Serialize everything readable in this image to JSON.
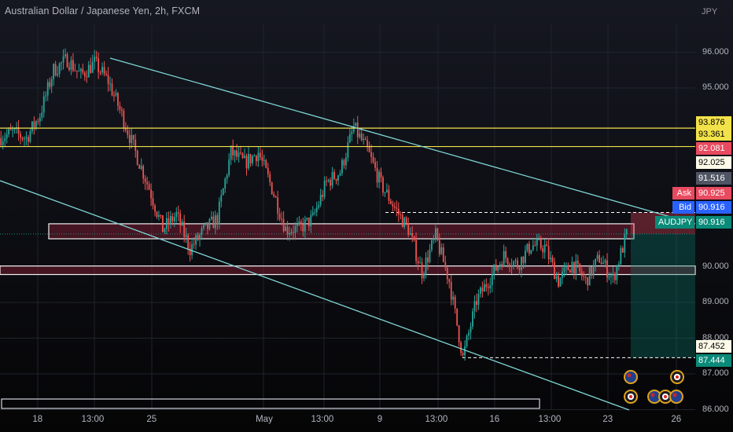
{
  "header": {
    "title": "Australian Dollar / Japanese Yen, 2h, FXCM",
    "currency": "JPY"
  },
  "chart_data": {
    "type": "candlestick",
    "symbol": "AUDJPY",
    "ylim": [
      86.0,
      96.5
    ],
    "y_ticks": [
      86.0,
      87.0,
      88.0,
      89.0,
      90.0,
      95.0,
      96.0
    ],
    "y_tick_labels": [
      "86.000",
      "87.000",
      "88.000",
      "89.000",
      "90.000",
      "95.000",
      "96.000"
    ],
    "x_tick_labels": [
      "18",
      "13:00",
      "25",
      "May",
      "13:00",
      "9",
      "13:00",
      "16",
      "13:00",
      "23",
      "26"
    ],
    "price_path": [
      93.6,
      93.75,
      93.6,
      94.25,
      95.5,
      95.8,
      95.35,
      95.7,
      95.2,
      94.25,
      93.2,
      92.2,
      91.05,
      91.45,
      90.5,
      91.0,
      91.35,
      93.2,
      92.9,
      93.2,
      92.2,
      91.05,
      91.05,
      91.35,
      92.35,
      92.65,
      93.9,
      93.25,
      92.3,
      91.65,
      91.05,
      89.85,
      90.85,
      89.6,
      87.45,
      89.05,
      89.7,
      90.3,
      90.05,
      90.6,
      90.55,
      89.6,
      90.1,
      89.6,
      90.25,
      89.65,
      90.9
    ],
    "horizontal_levels": [
      93.876,
      93.361,
      90.0
    ],
    "zones": [
      {
        "from": 90.78,
        "to": 91.2
      },
      {
        "from": 89.78,
        "to": 90.02
      }
    ],
    "channel_upper": [
      [
        95.8,
        0
      ],
      [
        90.9,
        1
      ]
    ],
    "position": {
      "entry": 90.916,
      "target": 87.452,
      "stop": 91.516
    },
    "price_tags": [
      {
        "value": "93.876",
        "label": "",
        "color": "#f2e24a",
        "text": "#000000"
      },
      {
        "value": "93.361",
        "label": "",
        "color": "#f2e24a",
        "text": "#000000"
      },
      {
        "value": "92.081",
        "label": "",
        "color": "#e84a5f",
        "text": "#ffffff"
      },
      {
        "value": "92.025",
        "label": "",
        "color": "#fdfbe8",
        "text": "#000000"
      },
      {
        "value": "91.516",
        "label": "",
        "color": "#505563",
        "text": "#ffffff"
      },
      {
        "value": "90.925",
        "label": "Ask",
        "color": "#e84a5f",
        "text": "#ffffff"
      },
      {
        "value": "90.916",
        "label": "Bid",
        "color": "#2962ff",
        "text": "#ffffff"
      },
      {
        "value": "90.916",
        "label": "AUDJPY",
        "color": "#0a8a78",
        "text": "#ffffff"
      },
      {
        "value": "87.452",
        "label": "",
        "color": "#fdfbe8",
        "text": "#000000"
      },
      {
        "value": "87.444",
        "label": "",
        "color": "#0a8a78",
        "text": "#ffffff"
      }
    ],
    "colors": {
      "up": "#26a69a",
      "down": "#ef5350",
      "level": "#f2e24a",
      "channel": "#7fd6d6"
    }
  }
}
